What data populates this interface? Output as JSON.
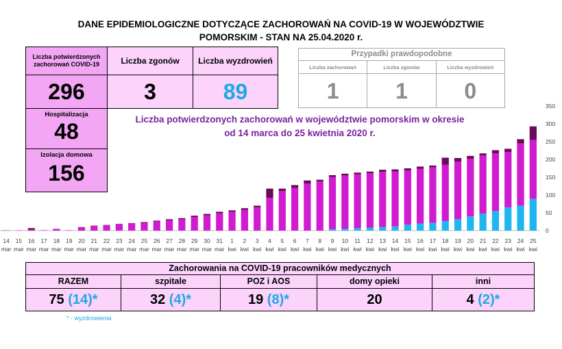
{
  "title_line1": "DANE EPIDEMIOLOGICZNE DOTYCZĄCE ZACHOROWAŃ NA COVID-19 W WOJEWÓDZTWIE",
  "title_line2": "POMORSKIM - STAN NA 25.04.2020 r.",
  "stats": {
    "confirmed_label": "Liczba potwierdzonych zachorowań COVID-19",
    "confirmed_value": "296",
    "deaths_label": "Liczba zgonów",
    "deaths_value": "3",
    "recovered_label": "Liczba wyzdrowień",
    "recovered_value": "89",
    "hospital_label": "Hospitalizacja",
    "hospital_value": "48",
    "isolation_label": "Izolacja domowa",
    "isolation_value": "156"
  },
  "probable": {
    "title": "Przypadki prawdopodobne",
    "cases_label": "Liczba zachorowań",
    "cases_value": "1",
    "deaths_label": "Liczba zgonów",
    "deaths_value": "1",
    "recovered_label": "Liczba wyzdrowień",
    "recovered_value": "0"
  },
  "chart_title_line1": "Liczba potwierdzonych zachorowań w województwie pomorskim w okresie",
  "chart_title_line2": "od 14 marca do 25 kwietnia 2020 r.",
  "medical": {
    "title": "Zachorowania na COVID-19 pracowników medycznych",
    "columns": [
      {
        "label": "RAZEM",
        "value": "75",
        "recovered": "(14)*"
      },
      {
        "label": "szpitale",
        "value": "32",
        "recovered": "(4)*"
      },
      {
        "label": "POZ i AOS",
        "value": "19",
        "recovered": "(8)*"
      },
      {
        "label": "domy opieki",
        "value": "20",
        "recovered": ""
      },
      {
        "label": "inni",
        "value": "4",
        "recovered": "(2)*"
      }
    ],
    "footnote": "* - wyzdrowienia"
  },
  "chart_data": {
    "type": "bar",
    "stacked": true,
    "categories": [
      "14 mar",
      "15 mar",
      "16 mar",
      "17 mar",
      "18 mar",
      "19 mar",
      "20 mar",
      "21 mar",
      "22 mar",
      "23 mar",
      "24 mar",
      "25 mar",
      "26 mar",
      "27 mar",
      "28 mar",
      "29 mar",
      "30 mar",
      "31 mar",
      "1 kwi",
      "2 kwi",
      "3 kwi",
      "4 kwi",
      "5 kwi",
      "6 kwi",
      "7 kwi",
      "8 kwi",
      "9 kwi",
      "10 kwi",
      "11 kwi",
      "12 kwi",
      "13 kwi",
      "14 kwi",
      "15 kwi",
      "16 kwi",
      "17 kwi",
      "18 kwi",
      "19 kwi",
      "20 kwi",
      "21 kwi",
      "22 kwi",
      "23 kwi",
      "24 kwi",
      "25 kwi"
    ],
    "tick_labels_day": [
      "14",
      "15",
      "16",
      "17",
      "18",
      "19",
      "20",
      "21",
      "22",
      "23",
      "24",
      "25",
      "26",
      "27",
      "28",
      "29",
      "30",
      "31",
      "1",
      "2",
      "3",
      "4",
      "5",
      "6",
      "7",
      "8",
      "9",
      "10",
      "11",
      "12",
      "13",
      "14",
      "15",
      "16",
      "17",
      "18",
      "19",
      "20",
      "21",
      "22",
      "23",
      "24",
      "25"
    ],
    "tick_labels_month": [
      "mar",
      "mar",
      "mar",
      "mar",
      "mar",
      "mar",
      "mar",
      "mar",
      "mar",
      "mar",
      "mar",
      "mar",
      "mar",
      "mar",
      "mar",
      "mar",
      "mar",
      "mar",
      "kwi",
      "kwi",
      "kwi",
      "kwi",
      "kwi",
      "kwi",
      "kwi",
      "kwi",
      "kwi",
      "kwi",
      "kwi",
      "kwi",
      "kwi",
      "kwi",
      "kwi",
      "kwi",
      "kwi",
      "kwi",
      "kwi",
      "kwi",
      "kwi",
      "kwi",
      "kwi",
      "kwi",
      "kwi"
    ],
    "series": [
      {
        "color": "#1fb6f0",
        "values": [
          0,
          0,
          0,
          0,
          0,
          0,
          0,
          0,
          0,
          0,
          0,
          0,
          0,
          0,
          0,
          0,
          0,
          0,
          0,
          0,
          0,
          0,
          0,
          0,
          0,
          0,
          4,
          5,
          7,
          8,
          10,
          12,
          17,
          20,
          22,
          27,
          32,
          40,
          48,
          55,
          65,
          70,
          89
        ]
      },
      {
        "color": "#d01bd0",
        "values": [
          1,
          1,
          3,
          1,
          5,
          1,
          9,
          13,
          15,
          18,
          20,
          22,
          26,
          29,
          32,
          38,
          43,
          49,
          53,
          58,
          65,
          92,
          111,
          120,
          132,
          138,
          147,
          150,
          151,
          153,
          155,
          154,
          152,
          154,
          156,
          158,
          162,
          162,
          163,
          162,
          156,
          175,
          166
        ]
      },
      {
        "color": "#6b0a59",
        "values": [
          0,
          0,
          4,
          0,
          0,
          0,
          1,
          1,
          1,
          1,
          1,
          2,
          2,
          3,
          3,
          4,
          4,
          4,
          4,
          5,
          5,
          26,
          7,
          8,
          9,
          5,
          5,
          5,
          5,
          5,
          6,
          6,
          6,
          6,
          5,
          20,
          10,
          8,
          6,
          9,
          9,
          12,
          38
        ]
      }
    ],
    "ylim": [
      0,
      350
    ],
    "yticks": [
      0,
      50,
      100,
      150,
      200,
      250,
      300,
      350
    ],
    "grid": false,
    "legend": "none"
  }
}
